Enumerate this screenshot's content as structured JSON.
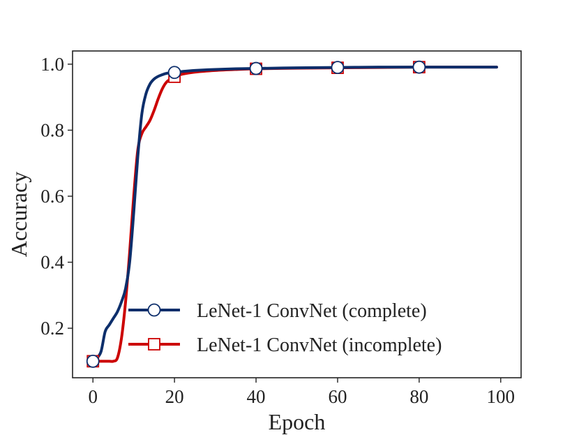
{
  "chart_data": {
    "type": "line",
    "xlabel": "Epoch",
    "ylabel": "Accuracy",
    "xlim": [
      -5,
      105
    ],
    "ylim": [
      0.05,
      1.04
    ],
    "xticks": [
      0,
      20,
      40,
      60,
      80,
      100
    ],
    "xtick_labels": [
      "0",
      "20",
      "40",
      "60",
      "80",
      "100"
    ],
    "yticks": [
      0.2,
      0.4,
      0.6,
      0.8,
      1.0
    ],
    "ytick_labels": [
      "0.2",
      "0.4",
      "0.6",
      "0.8",
      "1.0"
    ],
    "grid": false,
    "legend_position": "lower-right",
    "series": [
      {
        "name": "LeNet-1 ConvNet (complete)",
        "color": "#0d2e6b",
        "marker": "circle",
        "marker_epochs": [
          0,
          20,
          40,
          60,
          80
        ],
        "x": [
          0,
          1,
          2,
          3,
          4,
          5,
          6,
          7,
          8,
          9,
          10,
          11,
          12,
          13,
          14,
          15,
          16,
          17,
          18,
          20,
          22,
          25,
          30,
          35,
          40,
          50,
          60,
          70,
          80,
          90,
          99
        ],
        "y": [
          0.1,
          0.11,
          0.13,
          0.19,
          0.21,
          0.23,
          0.25,
          0.28,
          0.32,
          0.4,
          0.55,
          0.72,
          0.85,
          0.91,
          0.94,
          0.955,
          0.963,
          0.968,
          0.972,
          0.975,
          0.978,
          0.981,
          0.984,
          0.986,
          0.987,
          0.989,
          0.99,
          0.991,
          0.991,
          0.991,
          0.991
        ]
      },
      {
        "name": "LeNet-1 ConvNet (incomplete)",
        "color": "#cc0000",
        "marker": "square",
        "marker_epochs": [
          0,
          20,
          40,
          60,
          80
        ],
        "x": [
          0,
          1,
          2,
          3,
          4,
          5,
          6,
          7,
          8,
          9,
          10,
          11,
          12,
          13,
          14,
          15,
          16,
          17,
          18,
          19,
          20,
          22,
          25,
          30,
          35,
          40,
          50,
          60,
          70,
          80,
          90,
          99
        ],
        "y": [
          0.1,
          0.1,
          0.1,
          0.1,
          0.1,
          0.1,
          0.11,
          0.17,
          0.28,
          0.43,
          0.6,
          0.74,
          0.79,
          0.81,
          0.83,
          0.86,
          0.895,
          0.925,
          0.945,
          0.955,
          0.962,
          0.97,
          0.976,
          0.981,
          0.984,
          0.986,
          0.988,
          0.989,
          0.99,
          0.991,
          0.991,
          0.991
        ]
      }
    ]
  }
}
